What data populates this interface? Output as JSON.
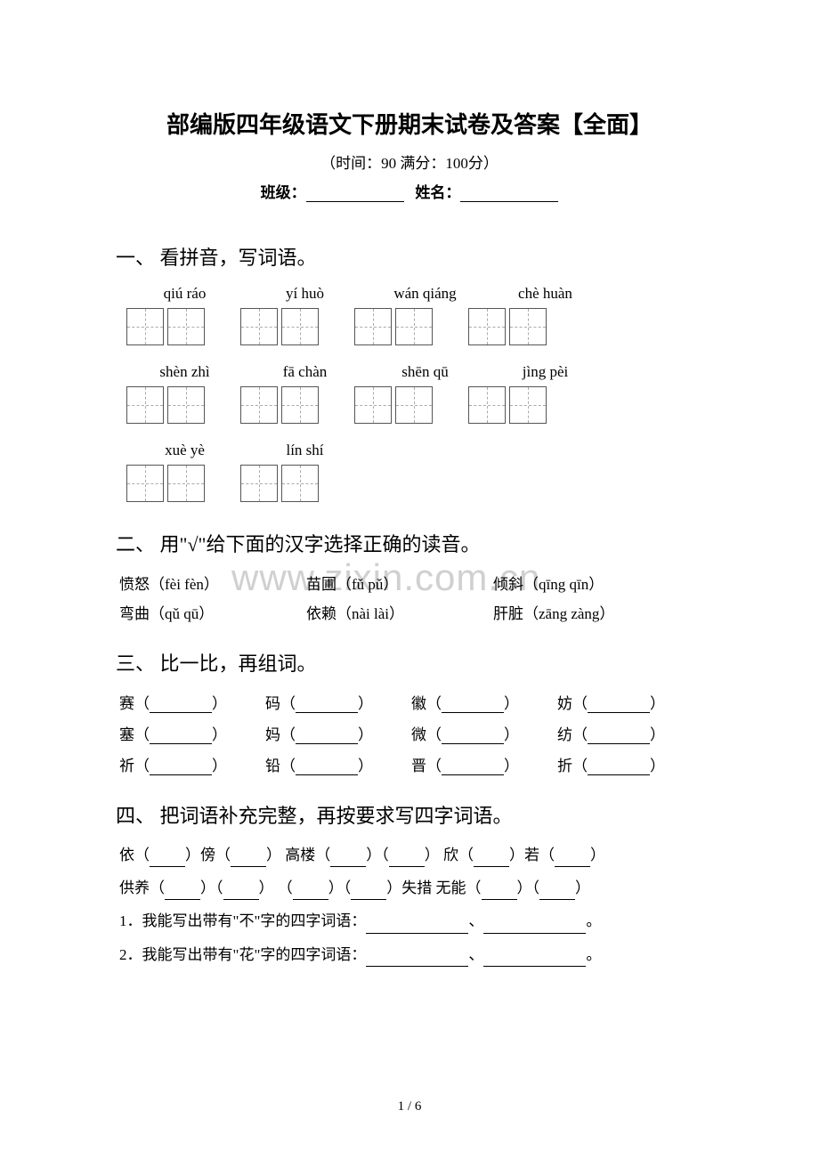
{
  "title": "部编版四年级语文下册期末试卷及答案【全面】",
  "subtitle": "（时间：90   满分：100分）",
  "info": {
    "class_label": "班级：",
    "name_label": "姓名："
  },
  "watermark": "www.zixin.com.cn",
  "section1": {
    "header": "一、 看拼音，写词语。",
    "row1": [
      "qiú ráo",
      "yí huò",
      "wán qiáng",
      "chè huàn"
    ],
    "row2": [
      "shèn zhì",
      "fā chàn",
      "shēn qū",
      "jìng pèi"
    ],
    "row3": [
      "xuè yè",
      "lín shí"
    ]
  },
  "section2": {
    "header": "二、 用\"√\"给下面的汉字选择正确的读音。",
    "rows": [
      [
        "愤怒（fèi fèn）",
        "苗圃（fǔ pǔ）",
        "倾斜（qīng qīn）"
      ],
      [
        "弯曲（qǔ qū）",
        "依赖（nài lài）",
        "肝脏（zāng zàng）"
      ]
    ]
  },
  "section3": {
    "header": "三、 比一比，再组词。",
    "rows": [
      [
        "赛",
        "码",
        "徽",
        "妨"
      ],
      [
        "塞",
        "妈",
        "微",
        "纺"
      ],
      [
        "祈",
        "铅",
        "晋",
        "折"
      ]
    ]
  },
  "section4": {
    "header": "四、 把词语补充完整，再按要求写四字词语。",
    "line1": {
      "p1": "依（",
      "p2": "）傍（",
      "p3": "）   高楼（",
      "p4": "）（",
      "p5": "）   欣（",
      "p6": "）若（",
      "p7": "）"
    },
    "line2": {
      "p1": "供养（",
      "p2": "）（",
      "p3": "）   （",
      "p4": "）（",
      "p5": "）失措   无能（",
      "p6": "）（",
      "p7": "）"
    },
    "line3": "1．我能写出带有\"不\"字的四字词语：",
    "line4": "2．我能写出带有\"花\"字的四字词语：",
    "sep": "、",
    "end": "。"
  },
  "page_num": "1 / 6"
}
